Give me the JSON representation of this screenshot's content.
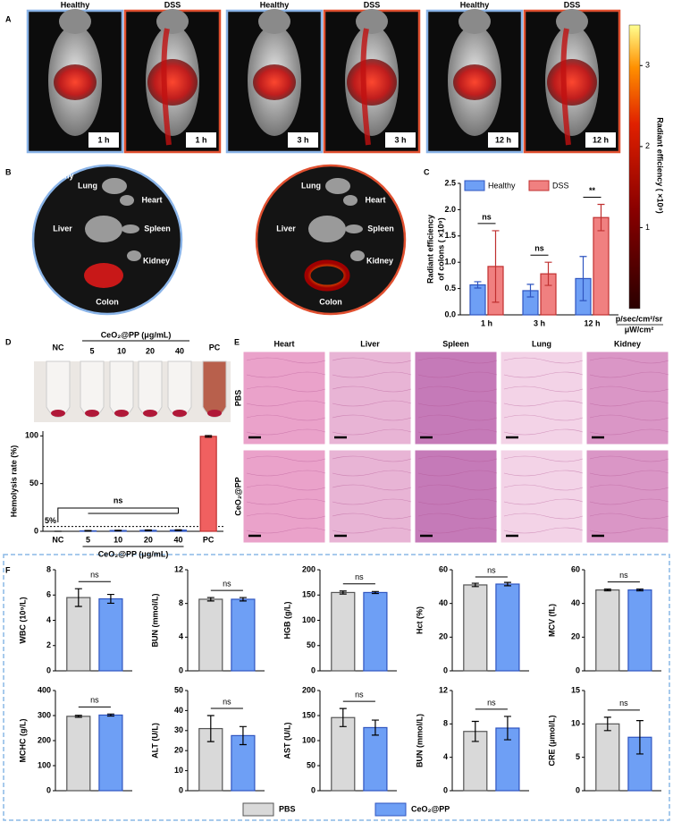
{
  "panel_labels": [
    "A",
    "B",
    "C",
    "D",
    "E",
    "F"
  ],
  "imaging": {
    "images": [
      {
        "group": "Healthy",
        "time": "1 h"
      },
      {
        "group": "DSS",
        "time": "1 h"
      },
      {
        "group": "Healthy",
        "time": "3 h"
      },
      {
        "group": "DSS",
        "time": "3 h"
      },
      {
        "group": "Healthy",
        "time": "12 h"
      },
      {
        "group": "DSS",
        "time": "12 h"
      }
    ],
    "colorbar": {
      "label": "Radiant  efficiency ( ×10⁹)",
      "range": [
        0,
        3.5
      ],
      "ticks": [
        1,
        2,
        3
      ],
      "units": [
        "p/sec/cm²/sr",
        "μW/cm²"
      ]
    }
  },
  "ex_vivo": {
    "dishes": [
      {
        "group": "Healthy",
        "organs": [
          "Lung",
          "Heart",
          "Liver",
          "Spleen",
          "Kidney",
          "Colon"
        ]
      },
      {
        "group": "DSS",
        "organs": [
          "Lung",
          "Heart",
          "Liver",
          "Spleen",
          "Kidney",
          "Colon"
        ]
      }
    ]
  },
  "hemolysis_tubes": {
    "title": "CeO₂@PP (μg/mL)",
    "labels": [
      "NC",
      "5",
      "10",
      "20",
      "40",
      "PC"
    ]
  },
  "histology": {
    "columns": [
      "Heart",
      "Liver",
      "Spleen",
      "Lung",
      "Kidney"
    ],
    "rows": [
      "PBS",
      "CeO₂@PP"
    ]
  },
  "blood_legend": {
    "names": [
      "PBS",
      "CeO₂@PP"
    ],
    "colors": [
      "#d9d9d9",
      "#6e9ff5"
    ]
  },
  "chart_data": [
    {
      "type": "grouped_bar",
      "ylabel": [
        "Radiant efficiency",
        "of colons ( ×10⁹)"
      ],
      "categories": [
        "1 h",
        "3 h",
        "12 h"
      ],
      "series": [
        {
          "name": "Healthy",
          "color": "#6e9ff5",
          "values": [
            0.57,
            0.46,
            0.69
          ],
          "errors": [
            0.06,
            0.12,
            0.42
          ]
        },
        {
          "name": "DSS",
          "color": "#f08080",
          "values": [
            0.92,
            0.78,
            1.85
          ],
          "errors": [
            0.68,
            0.22,
            0.25
          ]
        }
      ],
      "annotations": [
        "ns",
        "ns",
        "**"
      ],
      "ylim": [
        0,
        2.5
      ],
      "yticks": [
        {
          "value": 0,
          "label": "0.0"
        },
        0.5,
        {
          "value": 1,
          "label": "1.0"
        },
        1.5,
        {
          "value": 2,
          "label": "2.0"
        },
        2.5
      ]
    },
    {
      "type": "bar",
      "ylabel": "Hemolysis rate (%)",
      "xlabel": "CeO₂@PP (μg/mL)",
      "categories": [
        "NC",
        "5",
        "10",
        "20",
        "40",
        "PC"
      ],
      "values": [
        0,
        0.5,
        0.8,
        1.0,
        1.2,
        99.5
      ],
      "errors": [
        0,
        0.3,
        0.3,
        0.4,
        0.4,
        0.8
      ],
      "colors": [
        "#4a6fd8",
        "#4a6fd8",
        "#4a6fd8",
        "#4a6fd8",
        "#4a6fd8",
        "#f06060"
      ],
      "threshold": {
        "value": 5,
        "label": "5%"
      },
      "annotation": "ns",
      "ylim": [
        0,
        105
      ],
      "yticks": [
        0,
        50,
        100
      ]
    },
    {
      "type": "pair_bar",
      "ylabel": "WBC (10⁹/L)",
      "values": [
        5.8,
        5.7
      ],
      "errors": [
        0.7,
        0.35
      ],
      "annotation": "ns",
      "ylim": [
        0,
        8
      ],
      "yticks": [
        0,
        2,
        4,
        6,
        8
      ]
    },
    {
      "type": "pair_bar",
      "ylabel": "BUN (mmol/L)",
      "values": [
        8.5,
        8.5
      ],
      "errors": [
        0.2,
        0.2
      ],
      "annotation": "ns",
      "ylim": [
        0,
        12
      ],
      "yticks": [
        0,
        4,
        8,
        12
      ]
    },
    {
      "type": "pair_bar",
      "ylabel": "HGB (g/L)",
      "values": [
        155,
        155
      ],
      "errors": [
        3,
        2
      ],
      "annotation": "ns",
      "ylim": [
        0,
        200
      ],
      "yticks": [
        0,
        50,
        100,
        150,
        200
      ]
    },
    {
      "type": "pair_bar",
      "ylabel": "Hct (%)",
      "values": [
        51,
        51.5
      ],
      "errors": [
        1,
        1
      ],
      "annotation": "ns",
      "ylim": [
        0,
        60
      ],
      "yticks": [
        0,
        20,
        40,
        60
      ]
    },
    {
      "type": "pair_bar",
      "ylabel": "MCV (fL)",
      "values": [
        48,
        48
      ],
      "errors": [
        0.5,
        0.5
      ],
      "annotation": "ns",
      "ylim": [
        0,
        60
      ],
      "yticks": [
        0,
        20,
        40,
        60
      ]
    },
    {
      "type": "pair_bar",
      "ylabel": "MCHC (g/L)",
      "values": [
        297,
        302
      ],
      "errors": [
        4,
        4
      ],
      "annotation": "ns",
      "ylim": [
        0,
        400
      ],
      "yticks": [
        0,
        100,
        200,
        300,
        400
      ]
    },
    {
      "type": "pair_bar",
      "ylabel": "ALT (U/L)",
      "values": [
        31,
        27.5
      ],
      "errors": [
        6.5,
        4.5
      ],
      "annotation": "ns",
      "ylim": [
        0,
        50
      ],
      "yticks": [
        0,
        10,
        20,
        30,
        40,
        50
      ]
    },
    {
      "type": "pair_bar",
      "ylabel": "AST (U/L)",
      "values": [
        146,
        126
      ],
      "errors": [
        18,
        15
      ],
      "annotation": "ns",
      "ylim": [
        0,
        200
      ],
      "yticks": [
        0,
        50,
        100,
        150,
        200
      ]
    },
    {
      "type": "pair_bar",
      "ylabel": "BUN (mmol/L)",
      "values": [
        7.1,
        7.5
      ],
      "errors": [
        1.2,
        1.4
      ],
      "annotation": "ns",
      "ylim": [
        0,
        12
      ],
      "yticks": [
        0,
        4,
        8,
        12
      ]
    },
    {
      "type": "pair_bar",
      "ylabel": "CRE (μmol/L)",
      "values": [
        10,
        8
      ],
      "errors": [
        1,
        2.5
      ],
      "annotation": "ns",
      "ylim": [
        0,
        15
      ],
      "yticks": [
        0,
        5,
        10,
        15
      ]
    }
  ]
}
